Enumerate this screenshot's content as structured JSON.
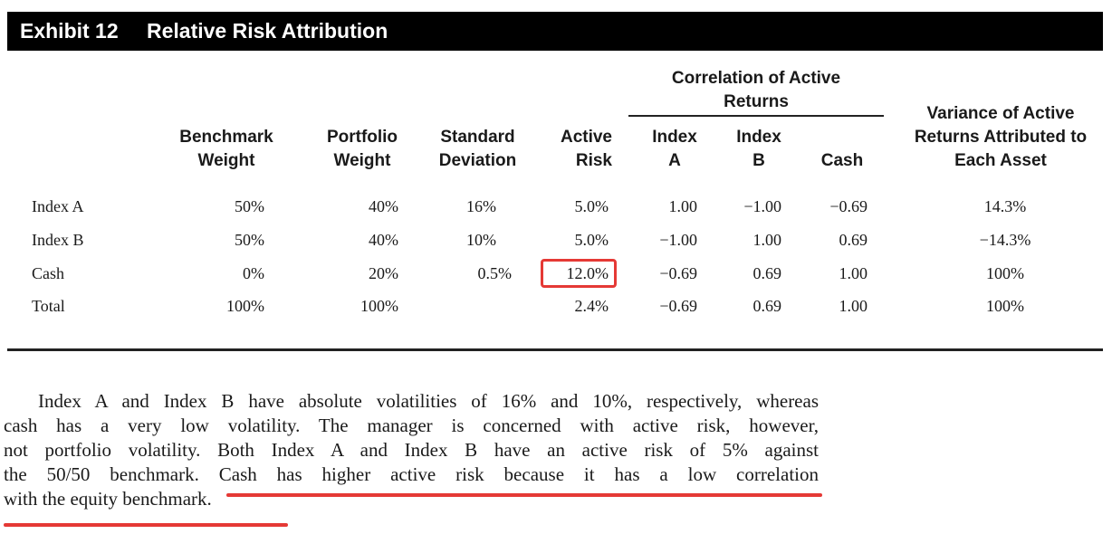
{
  "exhibit": {
    "number": "Exhibit 12",
    "title": "Relative Risk Attribution"
  },
  "headers": {
    "corr_group_line1": "Correlation of Active",
    "corr_group_line2": "Returns",
    "bench_1": "Benchmark",
    "bench_2": "Weight",
    "port_1": "Portfolio",
    "port_2": "Weight",
    "std_1": "Standard",
    "std_2": "Deviation",
    "active_1": "Active",
    "active_2": "Risk",
    "idxa_1": "Index",
    "idxa_2": "A",
    "idxb_1": "Index",
    "idxb_2": "B",
    "cash": "Cash",
    "var_1": "Variance of Active",
    "var_2": "Returns Attributed to",
    "var_3": "Each Asset"
  },
  "rows": [
    {
      "label": "Index A",
      "bench": "50%",
      "port": "40%",
      "std": "16%",
      "active": "5.0%",
      "ca": "1.00",
      "cb": "−1.00",
      "cc": "−0.69",
      "var": "14.3%"
    },
    {
      "label": "Index B",
      "bench": "50%",
      "port": "40%",
      "std": "10%",
      "active": "5.0%",
      "ca": "−1.00",
      "cb": "1.00",
      "cc": "0.69",
      "var": "−14.3%"
    },
    {
      "label": "Cash",
      "bench": "0%",
      "port": "20%",
      "std": "0.5%",
      "active": "12.0%",
      "ca": "−0.69",
      "cb": "0.69",
      "cc": "1.00",
      "var": "100%"
    },
    {
      "label": "Total",
      "bench": "100%",
      "port": "100%",
      "std": "",
      "active": "2.4%",
      "ca": "−0.69",
      "cb": "0.69",
      "cc": "1.00",
      "var": "100%"
    }
  ],
  "paragraph": {
    "line1": "Index A and Index B have absolute volatilities of 16% and 10%, respectively, whereas",
    "line2": "cash has a very low volatility. The manager is concerned with active risk, however,",
    "line3": "not portfolio volatility. Both Index A and Index B have an active risk of 5% against",
    "line4": "the 50/50 benchmark. Cash has higher active risk because it has a low correlation",
    "line5": "with the equity benchmark."
  },
  "colors": {
    "annotation": "#e53935",
    "title_bg": "#000000"
  }
}
